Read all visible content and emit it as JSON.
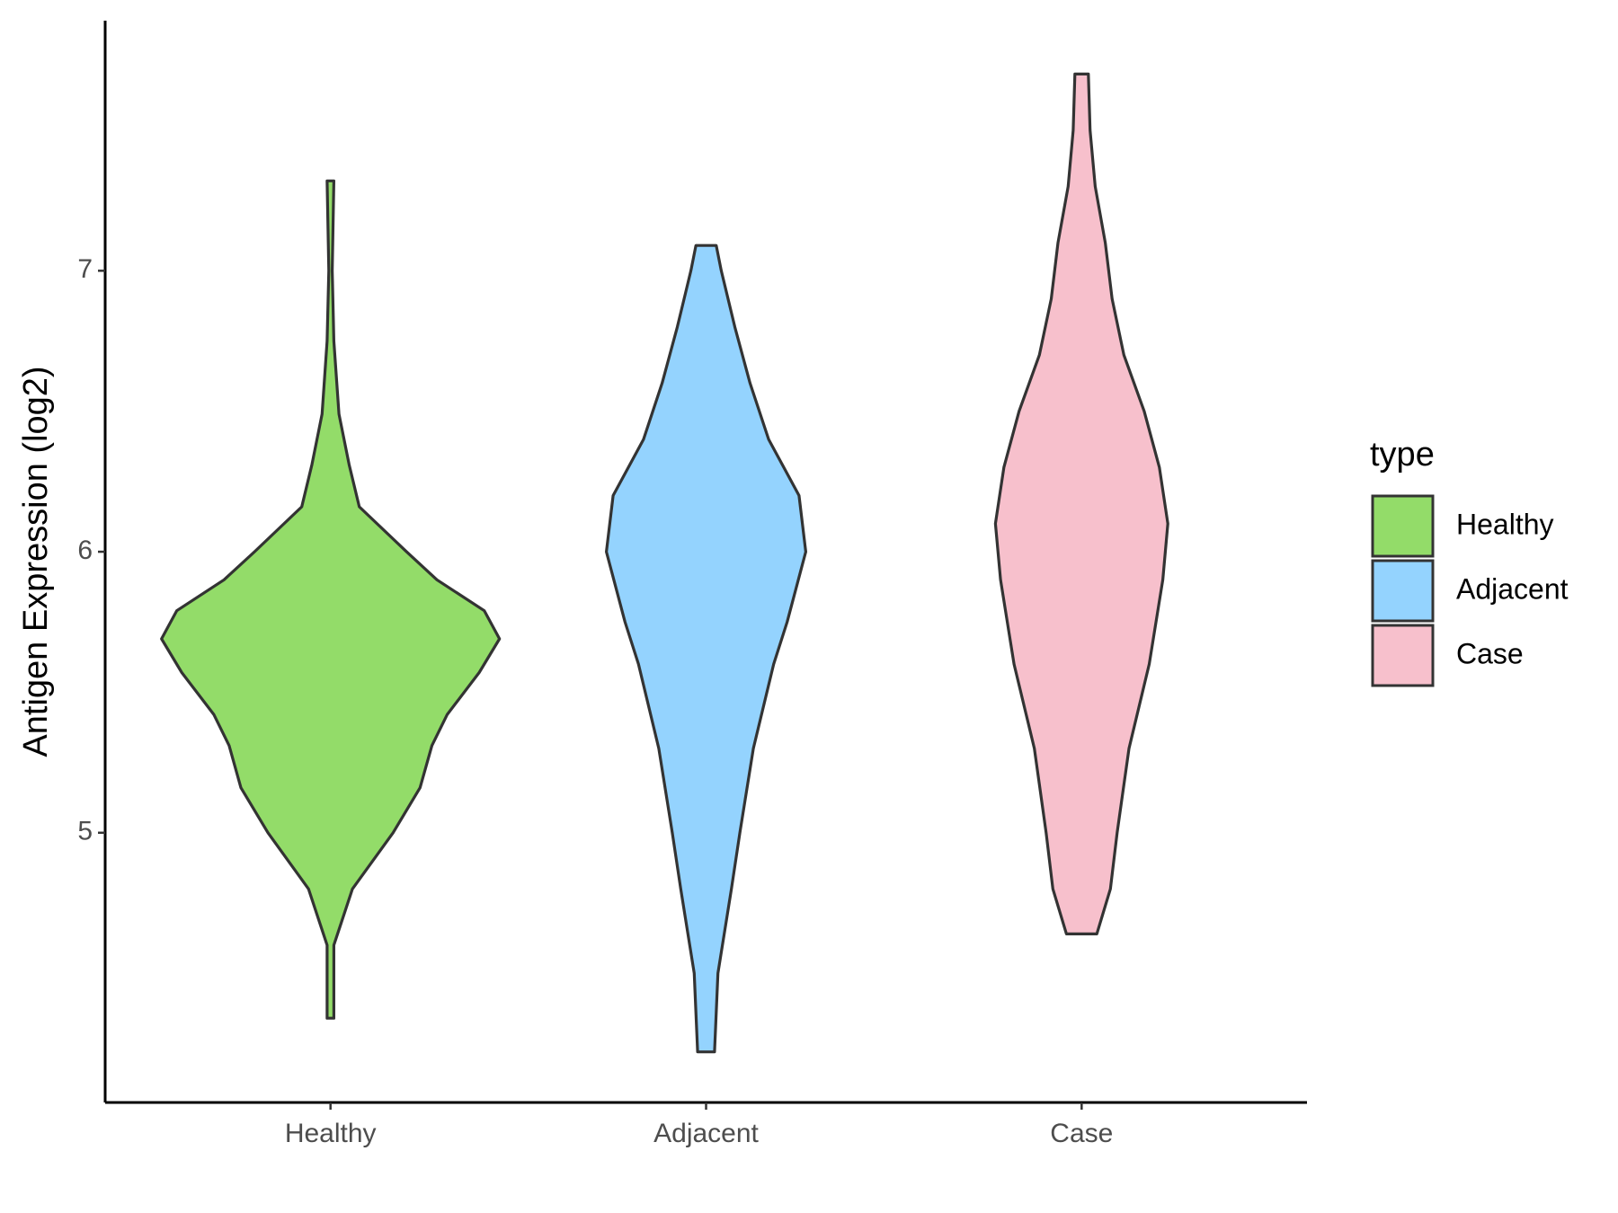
{
  "chart_data": {
    "type": "violin",
    "y_label": "Antigen Expression (log2)",
    "legend_title": "type",
    "categories": [
      "Healthy",
      "Adjacent",
      "Case"
    ],
    "ylim": [
      4.04,
      7.89
    ],
    "yticks": [
      5,
      6,
      7
    ],
    "series": [
      {
        "name": "Healthy",
        "color": "#93dc69",
        "y": [
          4.34,
          4.6,
          4.8,
          5.0,
          5.16,
          5.31,
          5.42,
          5.57,
          5.69,
          5.79,
          5.9,
          6.0,
          6.16,
          6.31,
          6.49,
          6.75,
          7.0,
          7.32
        ],
        "density": [
          0.02,
          0.02,
          0.13,
          0.37,
          0.53,
          0.6,
          0.69,
          0.88,
          1.0,
          0.91,
          0.63,
          0.45,
          0.17,
          0.11,
          0.05,
          0.02,
          0.01,
          0.02
        ]
      },
      {
        "name": "Adjacent",
        "color": "#94d3fe",
        "y": [
          4.22,
          4.5,
          4.8,
          5.0,
          5.3,
          5.6,
          5.75,
          6.0,
          6.2,
          6.4,
          6.6,
          6.8,
          7.0,
          7.09
        ],
        "density": [
          0.05,
          0.07,
          0.15,
          0.2,
          0.28,
          0.4,
          0.48,
          0.59,
          0.55,
          0.37,
          0.26,
          0.17,
          0.09,
          0.06
        ]
      },
      {
        "name": "Case",
        "color": "#f7c0cc",
        "y": [
          4.64,
          4.8,
          5.0,
          5.3,
          5.6,
          5.9,
          6.1,
          6.3,
          6.5,
          6.7,
          6.9,
          7.1,
          7.3,
          7.5,
          7.7
        ],
        "density": [
          0.09,
          0.17,
          0.21,
          0.28,
          0.4,
          0.48,
          0.51,
          0.46,
          0.37,
          0.25,
          0.18,
          0.14,
          0.08,
          0.05,
          0.04
        ]
      }
    ]
  }
}
